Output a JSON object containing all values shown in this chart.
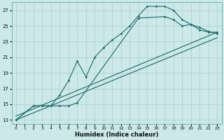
{
  "xlabel": "Humidex (Indice chaleur)",
  "bg_color": "#cce8e8",
  "line_color": "#1a6b6b",
  "grid_color": "#aad0d0",
  "xlim": [
    -0.5,
    23.5
  ],
  "ylim": [
    12.5,
    28.0
  ],
  "xticks": [
    0,
    1,
    2,
    3,
    4,
    5,
    6,
    7,
    8,
    9,
    10,
    11,
    12,
    13,
    14,
    15,
    16,
    17,
    18,
    19,
    20,
    21,
    22,
    23
  ],
  "yticks": [
    13,
    15,
    17,
    19,
    21,
    23,
    25,
    27
  ],
  "line1": {
    "x": [
      0,
      2,
      3,
      4,
      5,
      6,
      7,
      8,
      9,
      10,
      11,
      12,
      13,
      14,
      15,
      16,
      17,
      18,
      19,
      20,
      21,
      22,
      23
    ],
    "y": [
      13,
      14.8,
      14.8,
      14.8,
      16.2,
      18.0,
      20.5,
      18.5,
      21.0,
      22.2,
      23.2,
      24.0,
      25.0,
      26.3,
      27.5,
      27.5,
      27.5,
      27.0,
      25.8,
      25.2,
      24.8,
      24.3,
      24.0
    ]
  },
  "line2": {
    "x": [
      0,
      2,
      3,
      4,
      5,
      6,
      7,
      14,
      17,
      18,
      19,
      20,
      21,
      22,
      23
    ],
    "y": [
      13,
      14.8,
      14.8,
      14.8,
      14.8,
      14.8,
      15.2,
      26.0,
      26.2,
      25.8,
      25.0,
      25.2,
      24.5,
      24.2,
      24.2
    ]
  },
  "line3": {
    "x": [
      0,
      23
    ],
    "y": [
      13.5,
      24.2
    ]
  },
  "line4": {
    "x": [
      0,
      23
    ],
    "y": [
      13.0,
      23.5
    ]
  }
}
